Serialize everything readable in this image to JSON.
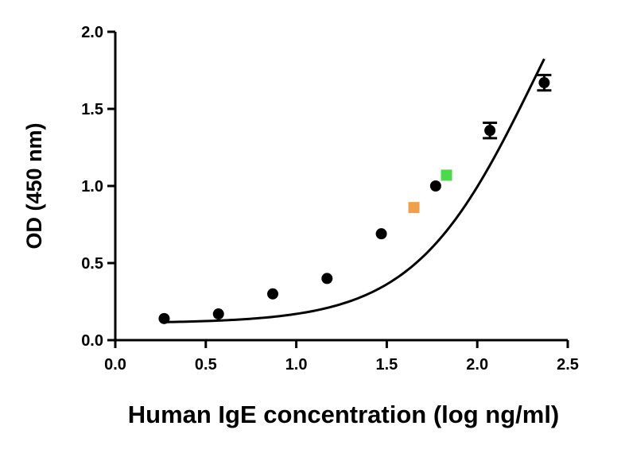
{
  "chart_data": {
    "type": "scatter",
    "title": "",
    "xlabel": "Human IgE concentration (log ng/ml)",
    "ylabel": "OD (450 nm)",
    "xlim": [
      0,
      2.5
    ],
    "ylim": [
      0,
      2.0
    ],
    "x_ticks": [
      "0.0",
      "0.5",
      "1.0",
      "1.5",
      "2.0",
      "2.5"
    ],
    "y_ticks": [
      "0.0",
      "0.5",
      "1.0",
      "1.5",
      "2.0"
    ],
    "grid": false,
    "legend": "none",
    "series": [
      {
        "marker": "circle",
        "color": "#000000",
        "x": [
          0.27,
          0.57,
          0.87,
          1.17,
          1.47,
          1.77,
          2.07,
          2.37
        ],
        "y": [
          0.14,
          0.17,
          0.3,
          0.4,
          0.69,
          1.0,
          1.36,
          1.67
        ],
        "error": [
          0.0,
          0.0,
          0.0,
          0.0,
          0.0,
          0.0,
          0.05,
          0.05
        ]
      },
      {
        "marker": "square",
        "color": "#f0a04b",
        "x": [
          1.65
        ],
        "y": [
          0.86
        ]
      },
      {
        "marker": "square",
        "color": "#4cd94c",
        "x": [
          1.83
        ],
        "y": [
          1.07
        ]
      }
    ],
    "fit_curve": {
      "type": "4PL",
      "color": "#000000",
      "x_range": [
        0.27,
        2.37
      ],
      "bottom": 0.11,
      "top": 3.3,
      "log_ec50": 2.32,
      "hill": 1.3
    }
  }
}
